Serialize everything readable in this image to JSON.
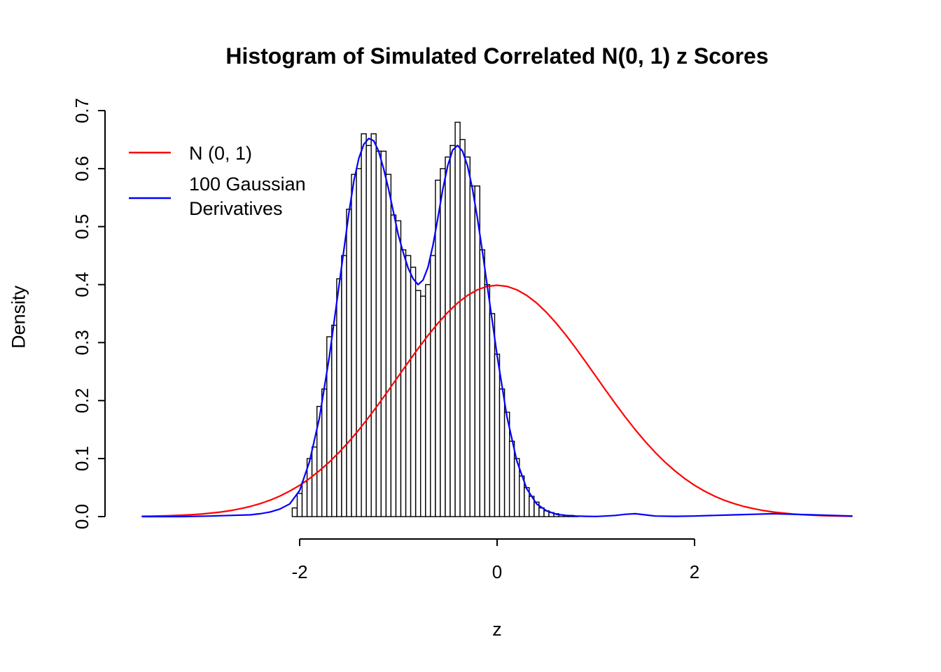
{
  "chart_data": {
    "type": "histogram",
    "title": "Histogram of Simulated Correlated N(0, 1) z Scores",
    "xlabel": "z",
    "ylabel": "Density",
    "xlim": [
      -3.6,
      3.6
    ],
    "ylim": [
      0,
      0.7
    ],
    "x_ticks": [
      -2,
      0,
      2
    ],
    "x_tick_labels": [
      "-2",
      "0",
      "2"
    ],
    "y_ticks": [
      0,
      0.1,
      0.2,
      0.3,
      0.4,
      0.5,
      0.6,
      0.7
    ],
    "y_tick_labels": [
      "0.0",
      "0.1",
      "0.2",
      "0.3",
      "0.4",
      "0.5",
      "0.6",
      "0.7"
    ],
    "grid": false,
    "colors": {
      "histogram_fill": "#FFFFFF",
      "histogram_border": "#000000",
      "normal_curve": "#FF0000",
      "derivative_curve": "#0000FF",
      "axis": "#000000"
    },
    "legend": {
      "position": "top-left",
      "box": false,
      "entries": [
        {
          "label": "N (0, 1)",
          "color": "#FF0000"
        },
        {
          "label": "100 Gaussian\nDerivatives",
          "color": "#0000FF"
        }
      ]
    },
    "histogram": {
      "bin_start": -2.075,
      "bin_width": 0.05,
      "heights": [
        0.015,
        0.04,
        0.06,
        0.1,
        0.12,
        0.19,
        0.22,
        0.31,
        0.33,
        0.41,
        0.45,
        0.53,
        0.59,
        0.6,
        0.66,
        0.64,
        0.66,
        0.63,
        0.63,
        0.59,
        0.52,
        0.51,
        0.46,
        0.45,
        0.43,
        0.39,
        0.38,
        0.4,
        0.45,
        0.58,
        0.6,
        0.62,
        0.64,
        0.68,
        0.65,
        0.62,
        0.57,
        0.57,
        0.46,
        0.4,
        0.35,
        0.28,
        0.22,
        0.18,
        0.13,
        0.1,
        0.07,
        0.05,
        0.035,
        0.025,
        0.015,
        0.01,
        0.007,
        0.005,
        0.003,
        0.002,
        0.002,
        0.001
      ]
    },
    "normal_curve": {
      "name": "N (0, 1)",
      "x_start": -3.6,
      "x_step": 0.1,
      "y": [
        0.0006,
        0.0009,
        0.0012,
        0.0017,
        0.0024,
        0.0033,
        0.0044,
        0.006,
        0.0079,
        0.0104,
        0.0136,
        0.0175,
        0.0224,
        0.0283,
        0.0355,
        0.044,
        0.054,
        0.0656,
        0.079,
        0.094,
        0.1109,
        0.1295,
        0.1497,
        0.1714,
        0.1942,
        0.2179,
        0.242,
        0.2661,
        0.2897,
        0.3123,
        0.3332,
        0.3521,
        0.3683,
        0.3814,
        0.391,
        0.397,
        0.3989,
        0.397,
        0.391,
        0.3814,
        0.3683,
        0.3521,
        0.3332,
        0.3123,
        0.2897,
        0.2661,
        0.242,
        0.2179,
        0.1942,
        0.1714,
        0.1497,
        0.1295,
        0.1109,
        0.094,
        0.079,
        0.0656,
        0.054,
        0.044,
        0.0355,
        0.0283,
        0.0224,
        0.0175,
        0.0136,
        0.0104,
        0.0079,
        0.006,
        0.0044,
        0.0033,
        0.0024,
        0.0017,
        0.0012,
        0.0009,
        0.0006
      ]
    },
    "derivative_curve": {
      "name": "100 Gaussian Derivatives",
      "x": [
        -3.6,
        -3.2,
        -2.9,
        -2.7,
        -2.5,
        -2.4,
        -2.3,
        -2.2,
        -2.1,
        -2.0,
        -1.9,
        -1.8,
        -1.7,
        -1.6,
        -1.5,
        -1.45,
        -1.4,
        -1.35,
        -1.3,
        -1.25,
        -1.2,
        -1.15,
        -1.1,
        -1.0,
        -0.95,
        -0.9,
        -0.85,
        -0.8,
        -0.75,
        -0.7,
        -0.65,
        -0.6,
        -0.55,
        -0.5,
        -0.45,
        -0.4,
        -0.35,
        -0.3,
        -0.25,
        -0.2,
        -0.15,
        -0.1,
        -0.05,
        0.0,
        0.1,
        0.2,
        0.3,
        0.4,
        0.5,
        0.6,
        0.7,
        0.8,
        0.9,
        1.0,
        1.1,
        1.2,
        1.3,
        1.4,
        1.5,
        1.6,
        1.8,
        2.0,
        2.2,
        2.4,
        2.6,
        2.8,
        3.0,
        3.2,
        3.4,
        3.6
      ],
      "y": [
        0,
        0,
        0.001,
        0.002,
        0.003,
        0.005,
        0.008,
        0.013,
        0.022,
        0.045,
        0.095,
        0.17,
        0.275,
        0.4,
        0.525,
        0.58,
        0.618,
        0.642,
        0.652,
        0.648,
        0.63,
        0.6,
        0.565,
        0.485,
        0.455,
        0.428,
        0.41,
        0.4,
        0.408,
        0.43,
        0.468,
        0.515,
        0.565,
        0.605,
        0.632,
        0.64,
        0.63,
        0.605,
        0.565,
        0.515,
        0.458,
        0.398,
        0.338,
        0.278,
        0.172,
        0.096,
        0.048,
        0.022,
        0.01,
        0.004,
        0.002,
        0.001,
        0.0005,
        0.0003,
        0.001,
        0.002,
        0.004,
        0.005,
        0.003,
        0.001,
        0.0005,
        0.001,
        0.002,
        0.003,
        0.004,
        0.005,
        0.004,
        0.003,
        0.002,
        0.001
      ]
    }
  }
}
